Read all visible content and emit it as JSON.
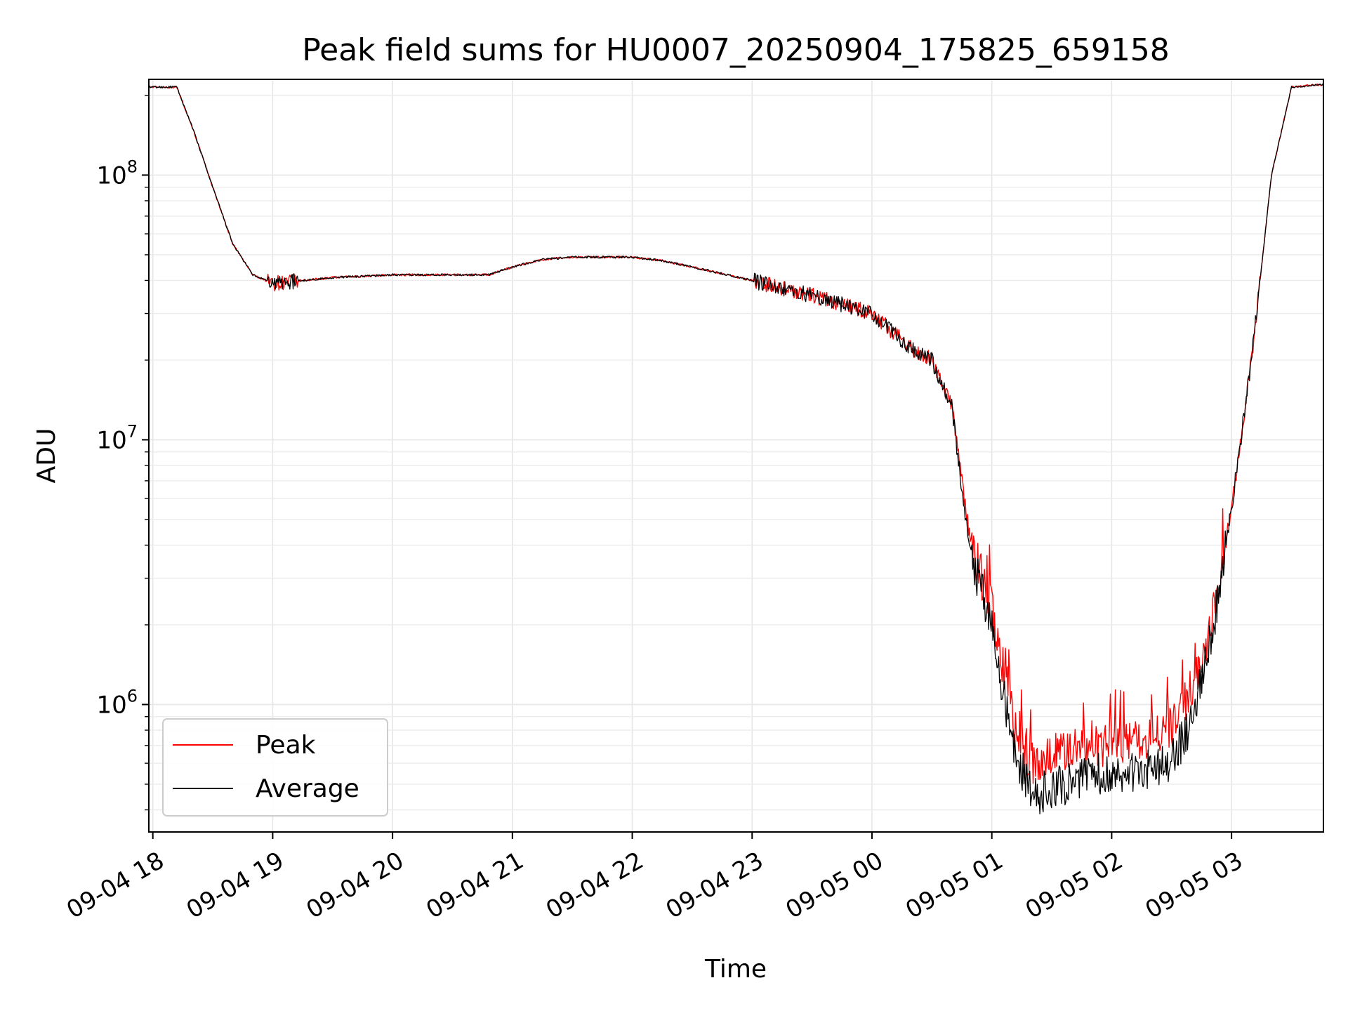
{
  "chart_data": {
    "type": "line",
    "title": "Peak field sums for HU0007_20250904_175825_659158",
    "xlabel": "Time",
    "ylabel": "ADU",
    "y_scale": "log",
    "ylim": [
      330000,
      230000000
    ],
    "xlim": [
      "2025-09-04 17:58",
      "2025-09-05 03:46"
    ],
    "grid": true,
    "legend_position": "lower-left",
    "x_ticks": [
      "09-04 18",
      "09-04 19",
      "09-04 20",
      "09-04 21",
      "09-04 22",
      "09-04 23",
      "09-05 00",
      "09-05 01",
      "09-05 02",
      "09-05 03"
    ],
    "y_ticks": [
      {
        "value": 1000000,
        "base": "10",
        "exp": "6"
      },
      {
        "value": 10000000,
        "base": "10",
        "exp": "7"
      },
      {
        "value": 100000000,
        "base": "10",
        "exp": "8"
      }
    ],
    "x": [
      "2025-09-04 17:58",
      "2025-09-04 18:12",
      "2025-09-04 18:20",
      "2025-09-04 18:30",
      "2025-09-04 18:40",
      "2025-09-04 18:50",
      "2025-09-04 19:00",
      "2025-09-04 19:30",
      "2025-09-04 20:00",
      "2025-09-04 20:30",
      "2025-09-04 20:48",
      "2025-09-04 21:00",
      "2025-09-04 21:15",
      "2025-09-04 21:30",
      "2025-09-04 22:00",
      "2025-09-04 22:15",
      "2025-09-04 22:30",
      "2025-09-04 23:00",
      "2025-09-04 23:30",
      "2025-09-05 00:00",
      "2025-09-05 00:20",
      "2025-09-05 00:30",
      "2025-09-05 00:35",
      "2025-09-05 00:40",
      "2025-09-05 00:45",
      "2025-09-05 00:50",
      "2025-09-05 01:00",
      "2025-09-05 01:10",
      "2025-09-05 01:20",
      "2025-09-05 01:30",
      "2025-09-05 01:45",
      "2025-09-05 02:00",
      "2025-09-05 02:15",
      "2025-09-05 02:30",
      "2025-09-05 02:40",
      "2025-09-05 02:50",
      "2025-09-05 03:00",
      "2025-09-05 03:10",
      "2025-09-05 03:15",
      "2025-09-05 03:20",
      "2025-09-05 03:30",
      "2025-09-05 03:46"
    ],
    "series": [
      {
        "name": "Peak",
        "color": "#ff0000",
        "values": [
          215000000,
          215000000,
          150000000,
          90000000,
          55000000,
          42000000,
          39000000,
          41000000,
          42000000,
          42000000,
          42000000,
          45000000,
          48000000,
          49000000,
          49000000,
          47500000,
          45000000,
          40000000,
          35000000,
          30000000,
          22000000,
          20000000,
          16000000,
          13500000,
          7000000,
          3800000,
          2400000,
          900000,
          600000,
          640000,
          730000,
          700000,
          760000,
          820000,
          1100000,
          2000000,
          5500000,
          20000000,
          45000000,
          100000000,
          215000000,
          220000000
        ]
      },
      {
        "name": "Average",
        "color": "#000000",
        "values": [
          215000000,
          215000000,
          150000000,
          90000000,
          55000000,
          42000000,
          39000000,
          41000000,
          42000000,
          42000000,
          42000000,
          45000000,
          48000000,
          49000000,
          49000000,
          47500000,
          45000000,
          40000000,
          35000000,
          30000000,
          22000000,
          20000000,
          16000000,
          13500000,
          6500000,
          3400000,
          2100000,
          700000,
          450000,
          480000,
          530000,
          560000,
          560000,
          620000,
          850000,
          1800000,
          5500000,
          20000000,
          45000000,
          100000000,
          215000000,
          220000000
        ]
      }
    ]
  }
}
